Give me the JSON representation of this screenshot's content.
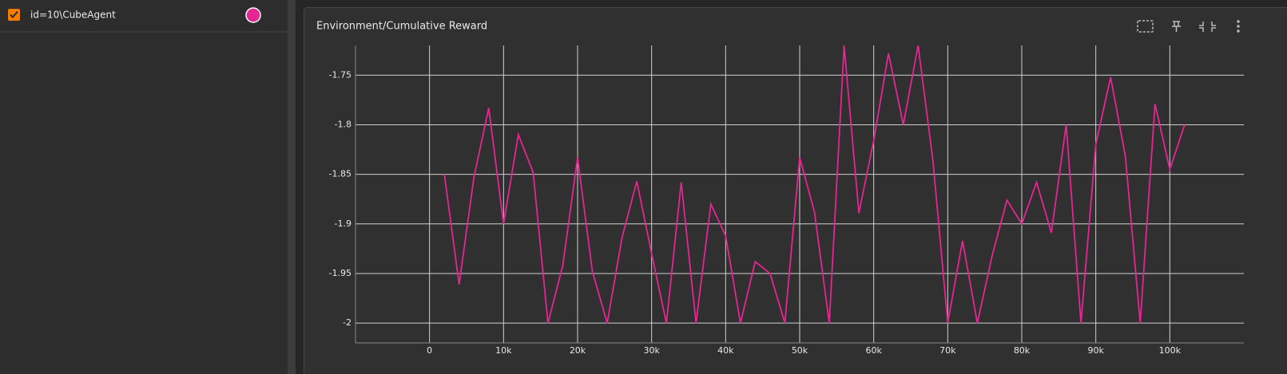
{
  "chart_data": {
    "type": "line",
    "title": "Environment/Cumulative Reward",
    "x": [
      2000,
      4000,
      6000,
      8000,
      10000,
      12000,
      14000,
      16000,
      18000,
      20000,
      22000,
      24000,
      26000,
      28000,
      30000,
      32000,
      34000,
      36000,
      38000,
      40000,
      42000,
      44000,
      46000,
      48000,
      50000,
      52000,
      54000,
      56000,
      58000,
      60000,
      62000,
      64000,
      66000,
      68000,
      70000,
      72000,
      74000,
      76000,
      78000,
      80000,
      82000,
      84000,
      86000,
      88000,
      90000,
      92000,
      94000,
      96000,
      98000,
      100000,
      102000
    ],
    "series": [
      {
        "name": "id=10\\CubeAgent",
        "color": "#e52592",
        "values": [
          -1.85,
          -1.961,
          -1.853,
          -1.783,
          -1.9,
          -1.81,
          -1.848,
          -2.0,
          -1.942,
          -1.833,
          -1.948,
          -2.0,
          -1.914,
          -1.857,
          -1.93,
          -2.0,
          -1.858,
          -2.0,
          -1.88,
          -1.912,
          -2.0,
          -1.938,
          -1.95,
          -2.0,
          -1.833,
          -1.888,
          -2.0,
          -1.72,
          -1.889,
          -1.816,
          -1.728,
          -1.8,
          -1.72,
          -1.836,
          -2.0,
          -1.917,
          -2.0,
          -1.932,
          -1.876,
          -1.9,
          -1.858,
          -1.909,
          -1.8,
          -2.0,
          -1.82,
          -1.752,
          -1.832,
          -2.0,
          -1.779,
          -1.845,
          -1.8
        ]
      }
    ],
    "xlim": [
      -10000,
      110000
    ],
    "xticks": [
      0,
      {
        "value": 10000,
        "label": "10k"
      },
      {
        "value": 20000,
        "label": "20k"
      },
      {
        "value": 30000,
        "label": "30k"
      },
      {
        "value": 40000,
        "label": "40k"
      },
      {
        "value": 50000,
        "label": "50k"
      },
      {
        "value": 60000,
        "label": "60k"
      },
      {
        "value": 70000,
        "label": "70k"
      },
      {
        "value": 80000,
        "label": "80k"
      },
      {
        "value": 90000,
        "label": "90k"
      },
      {
        "value": 100000,
        "label": "100k"
      }
    ],
    "ylim": [
      -2.02,
      -1.72
    ],
    "yticks": [
      -2,
      -1.95,
      -1.9,
      -1.85,
      -1.8,
      -1.75
    ],
    "grid": true
  }
}
